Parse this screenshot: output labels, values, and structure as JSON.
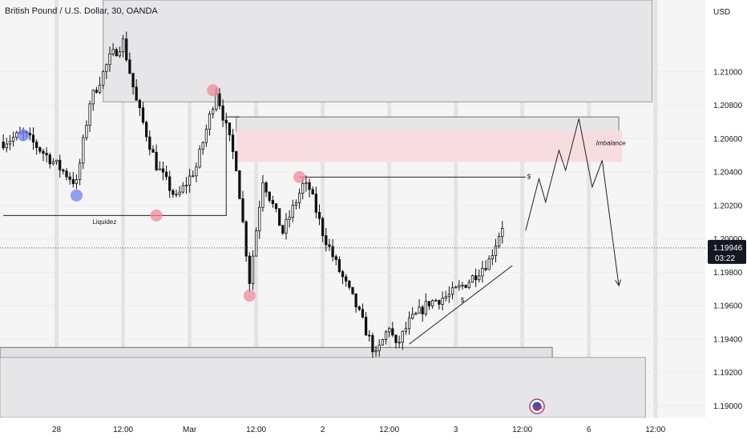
{
  "chart_data": {
    "type": "candlestick",
    "title": "British Pound / U.S. Dollar, 30, OANDA",
    "currency": "USD",
    "y_ticks": [
      1.21,
      1.208,
      1.206,
      1.204,
      1.202,
      1.2,
      1.198,
      1.196,
      1.194,
      1.192,
      1.19
    ],
    "ylim": [
      1.1893,
      1.2143
    ],
    "x_ticks": [
      {
        "label": "28",
        "index": 8
      },
      {
        "label": "12:00",
        "index": 18
      },
      {
        "label": "Mar",
        "index": 28
      },
      {
        "label": "12:00",
        "index": 38
      },
      {
        "label": "2",
        "index": 48
      },
      {
        "label": "12:00",
        "index": 58
      },
      {
        "label": "3",
        "index": 68
      },
      {
        "label": "12:00",
        "index": 78
      },
      {
        "label": "6",
        "index": 88
      },
      {
        "label": "12:00",
        "index": 98
      }
    ],
    "x_slots": 106,
    "last_price": "1.19946",
    "last_price_value": 1.19946,
    "countdown": "03:22",
    "key_points": [
      {
        "i": 0,
        "p": 1.2058
      },
      {
        "i": 3,
        "p": 1.2063
      },
      {
        "i": 7,
        "p": 1.2048
      },
      {
        "i": 11,
        "p": 1.2033
      },
      {
        "i": 13,
        "p": 1.2082
      },
      {
        "i": 16,
        "p": 1.2108
      },
      {
        "i": 18,
        "p": 1.2118
      },
      {
        "i": 20,
        "p": 1.2082
      },
      {
        "i": 23,
        "p": 1.2044
      },
      {
        "i": 26,
        "p": 1.2024
      },
      {
        "i": 29,
        "p": 1.2043
      },
      {
        "i": 31,
        "p": 1.2073
      },
      {
        "i": 32,
        "p": 1.2089
      },
      {
        "i": 35,
        "p": 1.2044
      },
      {
        "i": 37,
        "p": 1.1975
      },
      {
        "i": 39,
        "p": 1.2036
      },
      {
        "i": 42,
        "p": 1.2004
      },
      {
        "i": 45,
        "p": 1.2032
      },
      {
        "i": 46,
        "p": 1.203
      },
      {
        "i": 48,
        "p": 1.2004
      },
      {
        "i": 50,
        "p": 1.1985
      },
      {
        "i": 53,
        "p": 1.196
      },
      {
        "i": 56,
        "p": 1.193
      },
      {
        "i": 58,
        "p": 1.1948
      },
      {
        "i": 59,
        "p": 1.1935
      },
      {
        "i": 61,
        "p": 1.195
      },
      {
        "i": 64,
        "p": 1.1962
      },
      {
        "i": 67,
        "p": 1.1966
      },
      {
        "i": 70,
        "p": 1.1975
      },
      {
        "i": 73,
        "p": 1.1987
      },
      {
        "i": 75,
        "p": 1.2008
      }
    ],
    "zones": [
      {
        "name": "supply-zone-top",
        "x0": 15.5,
        "x1": 97.5,
        "y0": 1.2143,
        "y1": 1.2082,
        "fill": "#e6e6e8",
        "stroke": "#9a9a9a"
      },
      {
        "name": "resistance-zone",
        "x0": 35.5,
        "x1": 92.5,
        "y0": 1.2073,
        "y1": 1.2064,
        "fill": "#e6e6e8",
        "stroke": "#6f6f6f"
      },
      {
        "name": "imbalance-zone",
        "x0": 35.5,
        "x1": 93.0,
        "y0": 1.2065,
        "y1": 1.2046,
        "fill": "#f8dde0",
        "stroke": "none"
      },
      {
        "name": "demand-zone-line",
        "x0": 0,
        "x1": 82.5,
        "y0": 1.1935,
        "y1": 1.1926,
        "fill": "#e2e2e4",
        "stroke": "#6f6f6f"
      },
      {
        "name": "demand-zone-bottom",
        "x0": 0,
        "x1": 96.5,
        "y0": 1.1929,
        "y1": 1.1893,
        "fill": "#e6e6e8",
        "stroke": "#a0a0a0"
      }
    ],
    "circles": [
      {
        "i": 3,
        "p": 1.2062,
        "color": "#6f7ff0"
      },
      {
        "i": 11,
        "p": 1.2026,
        "color": "#6f7ff0"
      },
      {
        "i": 23,
        "p": 1.2014,
        "color": "#f08a9a"
      },
      {
        "i": 31.5,
        "p": 1.2089,
        "color": "#f08a9a"
      },
      {
        "i": 37,
        "p": 1.1966,
        "color": "#f08a9a"
      },
      {
        "i": 44.5,
        "p": 1.2037,
        "color": "#f08a9a"
      }
    ],
    "lines": [
      {
        "name": "liquidity-line",
        "points": [
          [
            0,
            1.2014
          ],
          [
            33.5,
            1.2014
          ],
          [
            33.5,
            1.2073
          ],
          [
            35.5,
            1.2073
          ]
        ]
      },
      {
        "name": "dollar-level-line",
        "points": [
          [
            44.5,
            1.2037
          ],
          [
            78.5,
            1.2037
          ]
        ]
      },
      {
        "name": "trendline",
        "points": [
          [
            61,
            1.1937
          ],
          [
            76.5,
            1.1984
          ]
        ]
      },
      {
        "name": "projection-path",
        "points": [
          [
            78.5,
            1.2005
          ],
          [
            80.5,
            1.2036
          ],
          [
            81.5,
            1.2022
          ],
          [
            83.5,
            1.2053
          ],
          [
            84.5,
            1.2041
          ],
          [
            86.5,
            1.2072
          ],
          [
            88.5,
            1.2031
          ],
          [
            90,
            1.2047
          ],
          [
            92.5,
            1.1972
          ]
        ]
      }
    ],
    "annotations": [
      {
        "text": "Liquidez",
        "i": 15.2,
        "p": 1.2009
      },
      {
        "text": "Imbalance",
        "i": 91.3,
        "p": 1.2056
      },
      {
        "text": "$",
        "i": 79,
        "p": 1.2036
      },
      {
        "text": "$",
        "i": 69,
        "p": 1.1962
      }
    ]
  }
}
